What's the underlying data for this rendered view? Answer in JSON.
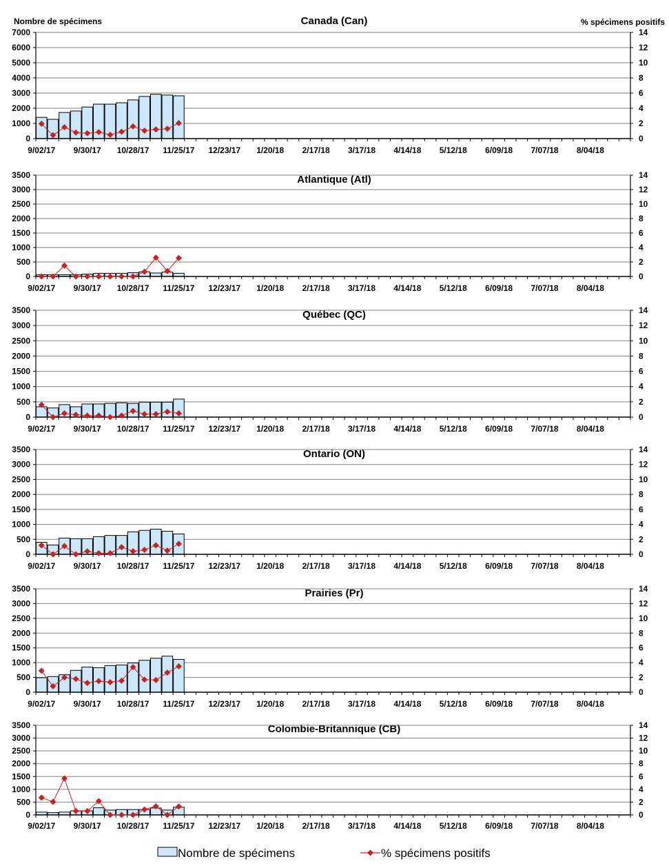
{
  "chart_data": {
    "type": "bar+line",
    "left_axis_label": "Nombre de spécimens",
    "right_axis_label": "% spécimens positifs",
    "x_tick_labels": [
      "9/02/17",
      "9/30/17",
      "10/28/17",
      "11/25/17",
      "12/23/17",
      "1/20/18",
      "2/17/18",
      "3/17/18",
      "4/14/18",
      "5/12/18",
      "6/09/18",
      "7/07/18",
      "8/04/18"
    ],
    "weeks_total": 52,
    "legend": {
      "bars": "Nombre de spécimens",
      "line": "% spécimens positifs",
      "placement": "bottom"
    },
    "colors": {
      "bar_fill": "#cce8f8",
      "bar_stroke": "#000000",
      "line": "#cc1f1f",
      "grid": "#808080"
    },
    "panels": [
      {
        "title": "Canada (Can)",
        "ylim": [
          0,
          7000
        ],
        "yticks": [
          0,
          1000,
          2000,
          3000,
          4000,
          5000,
          6000,
          7000
        ],
        "y2lim": [
          0,
          14
        ],
        "y2ticks": [
          0,
          2,
          4,
          6,
          8,
          10,
          12,
          14
        ],
        "specimens": [
          1400,
          1270,
          1720,
          1820,
          2080,
          2270,
          2270,
          2360,
          2550,
          2780,
          2920,
          2870,
          2820
        ],
        "pct_positive": [
          1.95,
          0.45,
          1.5,
          0.8,
          0.7,
          0.85,
          0.5,
          0.9,
          1.6,
          1.05,
          1.2,
          1.3,
          2.05
        ]
      },
      {
        "title": "Atlantique (Atl)",
        "ylim": [
          0,
          3500
        ],
        "yticks": [
          0,
          500,
          1000,
          1500,
          2000,
          2500,
          3000,
          3500
        ],
        "y2lim": [
          0,
          14
        ],
        "y2ticks": [
          0,
          2,
          4,
          6,
          8,
          10,
          12,
          14
        ],
        "specimens": [
          60,
          60,
          60,
          60,
          80,
          110,
          110,
          110,
          130,
          160,
          120,
          150,
          110
        ],
        "pct_positive": [
          0,
          0,
          1.5,
          0,
          0,
          0,
          0,
          0,
          0,
          0.65,
          2.6,
          0.75,
          2.55
        ]
      },
      {
        "title": "Québec (QC)",
        "ylim": [
          0,
          3500
        ],
        "yticks": [
          0,
          500,
          1000,
          1500,
          2000,
          2500,
          3000,
          3500
        ],
        "y2lim": [
          0,
          14
        ],
        "y2ticks": [
          0,
          2,
          4,
          6,
          8,
          10,
          12,
          14
        ],
        "specimens": [
          340,
          300,
          410,
          340,
          430,
          430,
          450,
          470,
          450,
          490,
          490,
          490,
          590
        ],
        "pct_positive": [
          1.6,
          0,
          0.5,
          0.3,
          0.2,
          0.2,
          0,
          0.2,
          0.8,
          0.4,
          0.4,
          0.7,
          0.5
        ]
      },
      {
        "title": "Ontario (ON)",
        "ylim": [
          0,
          3500
        ],
        "yticks": [
          0,
          500,
          1000,
          1500,
          2000,
          2500,
          3000,
          3500
        ],
        "y2lim": [
          0,
          14
        ],
        "y2ticks": [
          0,
          2,
          4,
          6,
          8,
          10,
          12,
          14
        ],
        "specimens": [
          400,
          310,
          540,
          520,
          520,
          590,
          630,
          630,
          750,
          800,
          840,
          770,
          680
        ],
        "pct_positive": [
          1.2,
          0,
          1.1,
          0,
          0.4,
          0.15,
          0.15,
          0.95,
          0.4,
          0.6,
          1.2,
          0.5,
          1.4
        ]
      },
      {
        "title": "Prairies (Pr)",
        "ylim": [
          0,
          3500
        ],
        "yticks": [
          0,
          500,
          1000,
          1500,
          2000,
          2500,
          3000,
          3500
        ],
        "y2lim": [
          0,
          14
        ],
        "y2ticks": [
          0,
          2,
          4,
          6,
          8,
          10,
          12,
          14
        ],
        "specimens": [
          490,
          530,
          590,
          740,
          850,
          830,
          900,
          920,
          990,
          1080,
          1150,
          1220,
          1110
        ],
        "pct_positive": [
          2.9,
          0.8,
          2.0,
          1.8,
          1.25,
          1.5,
          1.35,
          1.55,
          3.4,
          1.7,
          1.65,
          2.65,
          3.5
        ]
      },
      {
        "title": "Colombie-Britannique (CB)",
        "ylim": [
          0,
          3500
        ],
        "yticks": [
          0,
          500,
          1000,
          1500,
          2000,
          2500,
          3000,
          3500
        ],
        "y2lim": [
          0,
          14
        ],
        "y2ticks": [
          0,
          2,
          4,
          6,
          8,
          10,
          12,
          14
        ],
        "specimens": [
          110,
          90,
          110,
          160,
          160,
          280,
          190,
          210,
          210,
          210,
          270,
          190,
          300
        ],
        "pct_positive": [
          2.7,
          2.05,
          5.7,
          0.6,
          0.6,
          2.15,
          0,
          0,
          0,
          0.85,
          1.35,
          0,
          1.3
        ]
      }
    ]
  }
}
